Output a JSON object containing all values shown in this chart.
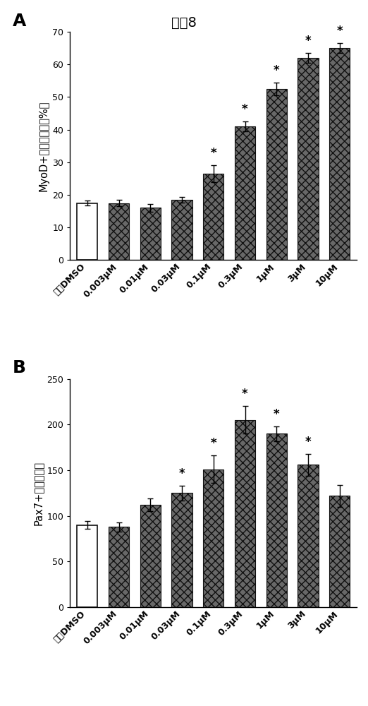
{
  "title": "供体8",
  "panel_A": {
    "label": "A",
    "ylabel": "MyoD+细胞的比例（%）",
    "categories": [
      "对照DMSO",
      "0.003μM",
      "0.01μM",
      "0.03μM",
      "0.1μM",
      "0.3μM",
      "1μM",
      "3μM",
      "10μM"
    ],
    "values": [
      17.5,
      17.5,
      16.0,
      18.5,
      26.5,
      41.0,
      52.5,
      62.0,
      65.0
    ],
    "errors": [
      0.8,
      1.0,
      1.2,
      0.8,
      2.5,
      1.5,
      2.0,
      1.5,
      1.5
    ],
    "ylim": [
      0,
      70
    ],
    "yticks": [
      0,
      10,
      20,
      30,
      40,
      50,
      60,
      70
    ],
    "significant": [
      false,
      false,
      false,
      false,
      true,
      true,
      true,
      true,
      true
    ],
    "is_control": [
      true,
      false,
      false,
      false,
      false,
      false,
      false,
      false,
      false
    ]
  },
  "panel_B": {
    "label": "B",
    "ylabel": "Pax7+细胞的数量",
    "categories": [
      "对照DMSO",
      "0.003μM",
      "0.01μM",
      "0.03μM",
      "0.1μM",
      "0.3μM",
      "1μM",
      "3μM",
      "10μM"
    ],
    "values": [
      90,
      88,
      112,
      125,
      151,
      205,
      190,
      156,
      122
    ],
    "errors": [
      4,
      5,
      7,
      8,
      15,
      15,
      8,
      12,
      12
    ],
    "ylim": [
      0,
      250
    ],
    "yticks": [
      0,
      50,
      100,
      150,
      200,
      250
    ],
    "significant": [
      false,
      false,
      false,
      true,
      true,
      true,
      true,
      true,
      false
    ],
    "is_control": [
      true,
      false,
      false,
      false,
      false,
      false,
      false,
      false,
      false
    ]
  },
  "bar_edge_color": "#111111",
  "bar_width": 0.65,
  "error_capsize": 3,
  "error_color": "black",
  "error_linewidth": 1.0,
  "star_fontsize": 12,
  "axis_label_fontsize": 10.5,
  "tick_fontsize": 9,
  "panel_label_fontsize": 18,
  "title_fontsize": 14,
  "background_color": "white"
}
